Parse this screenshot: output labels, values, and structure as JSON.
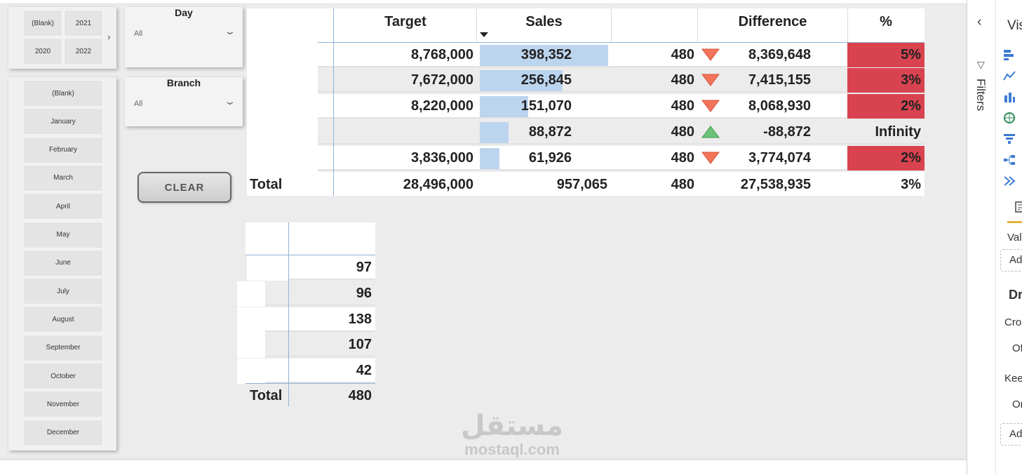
{
  "year_slicer": {
    "tiles": [
      "(Blank)",
      "2021",
      "2020",
      "2022"
    ]
  },
  "month_slicer": {
    "items": [
      "(Blank)",
      "January",
      "February",
      "March",
      "April",
      "May",
      "June",
      "July",
      "August",
      "September",
      "October",
      "November",
      "December"
    ]
  },
  "day_dropdown": {
    "title": "Day",
    "value": "All"
  },
  "branch_dropdown": {
    "title": "Branch",
    "value": "All"
  },
  "clear_button": {
    "label": "CLEAR"
  },
  "main_table": {
    "headers": {
      "target": "Target",
      "sales": "Sales",
      "difference": "Difference",
      "percent": "%"
    },
    "rows": [
      {
        "target": "8,768,000",
        "sales": "398,352",
        "sales_value": 398352,
        "count": "480",
        "trend": "down",
        "difference": "8,369,648",
        "percent": "5%",
        "highlight": true
      },
      {
        "target": "7,672,000",
        "sales": "256,845",
        "sales_value": 256845,
        "count": "480",
        "trend": "down",
        "difference": "7,415,155",
        "percent": "3%",
        "highlight": true
      },
      {
        "target": "8,220,000",
        "sales": "151,070",
        "sales_value": 151070,
        "count": "480",
        "trend": "down",
        "difference": "8,068,930",
        "percent": "2%",
        "highlight": true
      },
      {
        "target": "",
        "sales": "88,872",
        "sales_value": 88872,
        "count": "480",
        "trend": "up",
        "difference": "-88,872",
        "percent": "Infinity",
        "highlight": false
      },
      {
        "target": "3,836,000",
        "sales": "61,926",
        "sales_value": 61926,
        "count": "480",
        "trend": "down",
        "difference": "3,774,074",
        "percent": "2%",
        "highlight": true
      }
    ],
    "total": {
      "label": "Total",
      "target": "28,496,000",
      "sales": "957,065",
      "count": "480",
      "difference": "27,538,935",
      "percent": "3%"
    }
  },
  "count_table": {
    "rows": [
      "97",
      "96",
      "138",
      "107",
      "42"
    ],
    "total": {
      "label": "Total",
      "value": "480"
    }
  },
  "side_panel": {
    "filters_label": "Filters",
    "labels": [
      "Vis",
      "Valu",
      "Ad",
      "Dr",
      "Cros",
      "Of",
      "Kee",
      "Or",
      "Ad"
    ]
  },
  "watermark": {
    "arabic": "مستقل",
    "latin": "mostaql.com"
  },
  "colors": {
    "bar": "#bcd5ef",
    "highlight": "#d9434f",
    "down_arrow": "#f2745a",
    "up_arrow": "#6cc27a"
  }
}
